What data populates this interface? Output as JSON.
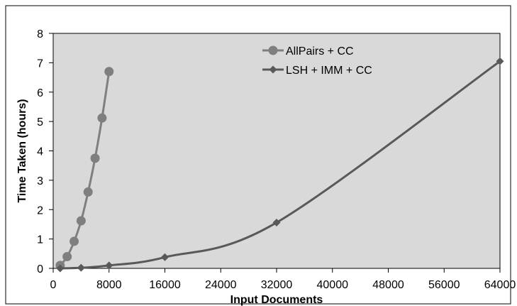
{
  "chart_data": {
    "type": "line",
    "title": "",
    "xlabel": "Input Documents",
    "ylabel": "Time Taken (hours)",
    "xlim": [
      0,
      64000
    ],
    "ylim": [
      0,
      8
    ],
    "xticks": [
      "0",
      "8000",
      "16000",
      "24000",
      "32000",
      "40000",
      "48000",
      "56000",
      "64000"
    ],
    "yticks": [
      "0",
      "1",
      "2",
      "3",
      "4",
      "5",
      "6",
      "7",
      "8"
    ],
    "grid": false,
    "legend_position": "top-center",
    "colors": {
      "plot_background": "#d9d9d9",
      "series1": "#7f7f7f",
      "series2": "#595959"
    },
    "series": [
      {
        "name": "AllPairs + CC",
        "marker": "circle",
        "x": [
          1000,
          2000,
          3000,
          4000,
          5000,
          6000,
          7000,
          8000
        ],
        "y": [
          0.1,
          0.4,
          0.92,
          1.62,
          2.6,
          3.75,
          5.12,
          6.7
        ]
      },
      {
        "name": "LSH + IMM + CC",
        "marker": "diamond",
        "x": [
          1000,
          4000,
          8000,
          16000,
          32000,
          64000
        ],
        "y": [
          0.0,
          0.02,
          0.1,
          0.38,
          1.56,
          7.05
        ]
      }
    ]
  }
}
